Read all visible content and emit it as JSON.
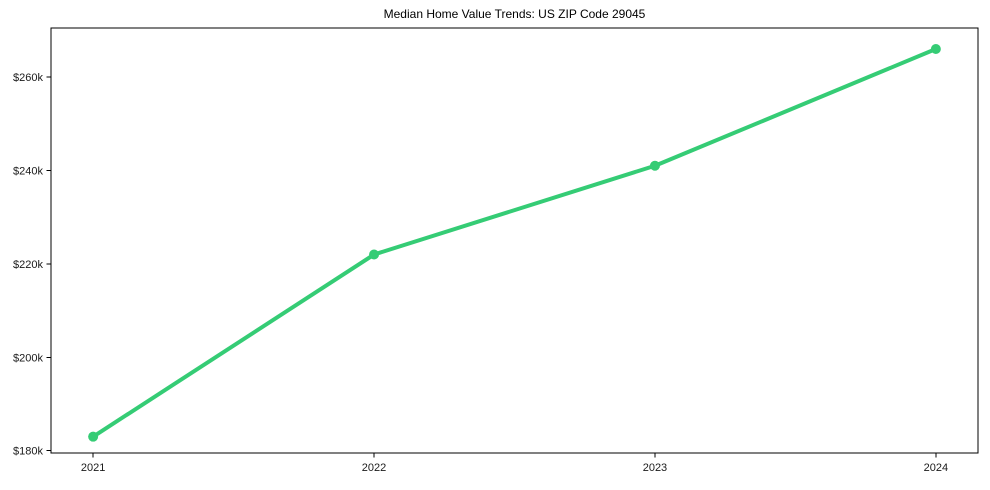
{
  "chart_data": {
    "type": "line",
    "title": "Median Home Value Trends: US ZIP Code 29045",
    "xlabel": "",
    "ylabel": "",
    "x": [
      2021,
      2022,
      2023,
      2024
    ],
    "series": [
      {
        "name": "Median Home Value",
        "values": [
          183000,
          222000,
          241000,
          266000
        ]
      }
    ],
    "x_tick_labels": [
      "2021",
      "2022",
      "2023",
      "2024"
    ],
    "y_ticks": [
      180000,
      200000,
      220000,
      240000,
      260000
    ],
    "y_tick_labels": [
      "$180k",
      "$200k",
      "$220k",
      "$240k",
      "$260k"
    ],
    "xlim": [
      2020.85,
      2024.15
    ],
    "ylim": [
      179500,
      270500
    ],
    "grid": false,
    "legend": null,
    "line_color": "#35cc75",
    "marker": "circle",
    "marker_radius": 5,
    "line_width": 4,
    "axis_color": "#000000",
    "tick_label_color": "#1a1a1a",
    "background_color": "#ffffff"
  }
}
